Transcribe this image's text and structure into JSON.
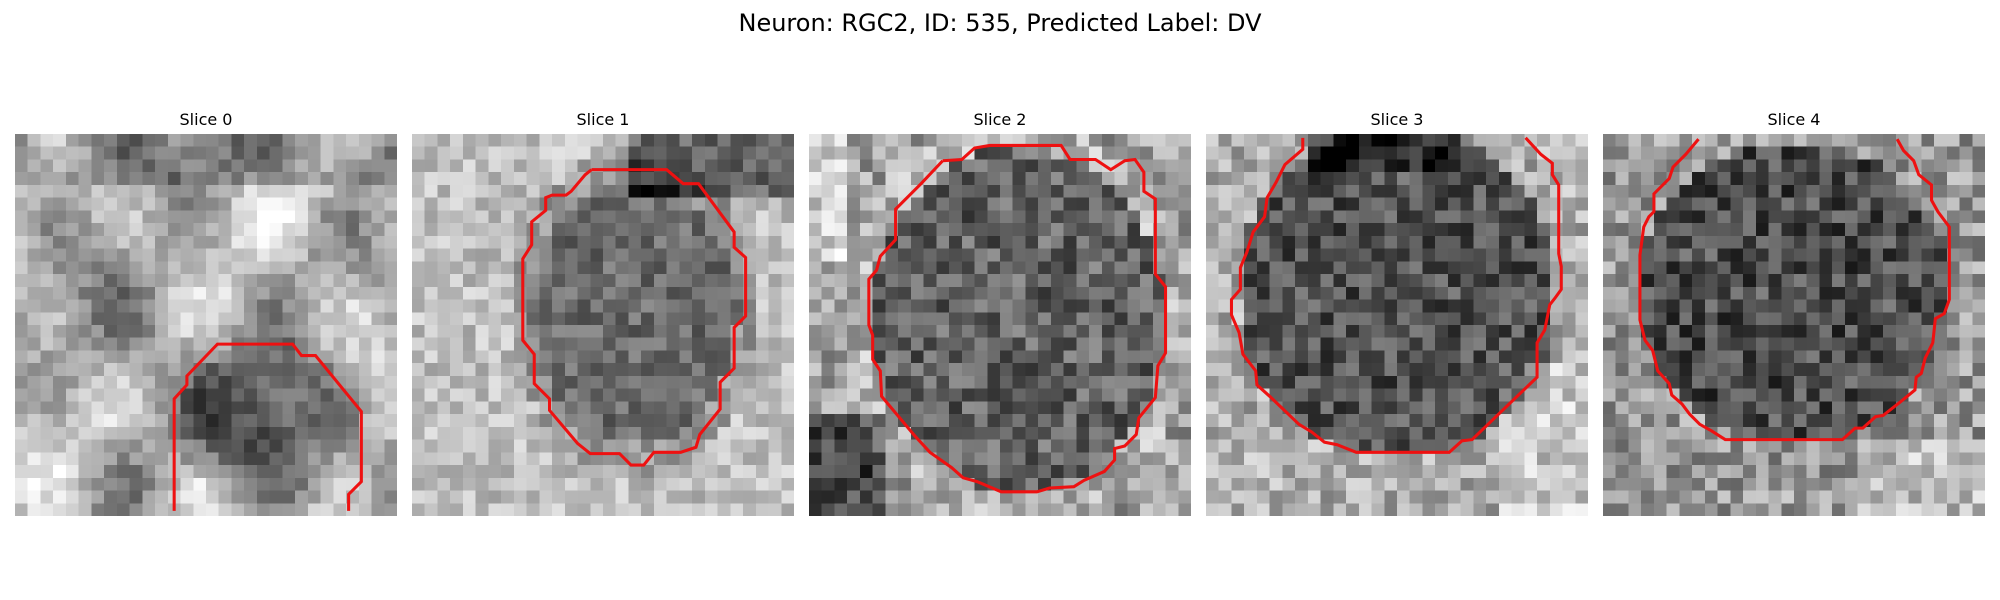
{
  "figure": {
    "title": "Neuron: RGC2, ID: 535, Predicted Label: DV"
  },
  "colors": {
    "contour": "#ee1111",
    "background": "#ffffff"
  },
  "panels": [
    {
      "title": "Slice 0"
    },
    {
      "title": "Slice 1"
    },
    {
      "title": "Slice 2"
    },
    {
      "title": "Slice 3"
    },
    {
      "title": "Slice 4"
    }
  ]
}
